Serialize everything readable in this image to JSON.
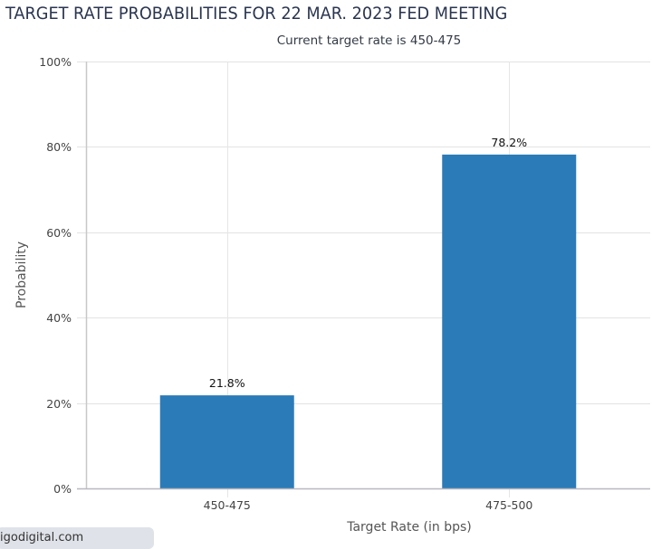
{
  "chart_data": {
    "type": "bar",
    "title": "TARGET RATE PROBABILITIES FOR 22 MAR. 2023 FED MEETING",
    "subtitle": "Current target rate is 450-475",
    "categories": [
      "450-475",
      "475-500"
    ],
    "values": [
      21.8,
      78.2
    ],
    "data_labels": [
      "21.8%",
      "78.2%"
    ],
    "xlabel": "Target Rate (in bps)",
    "ylabel": "Probability",
    "ylim": [
      0,
      100
    ],
    "yticks": [
      0,
      20,
      40,
      60,
      80,
      100
    ],
    "ytick_labels": [
      "0%",
      "20%",
      "40%",
      "60%",
      "80%",
      "100%"
    ],
    "grid": true,
    "bar_color": "#2b7bb9"
  },
  "watermark": "igodigital.com"
}
